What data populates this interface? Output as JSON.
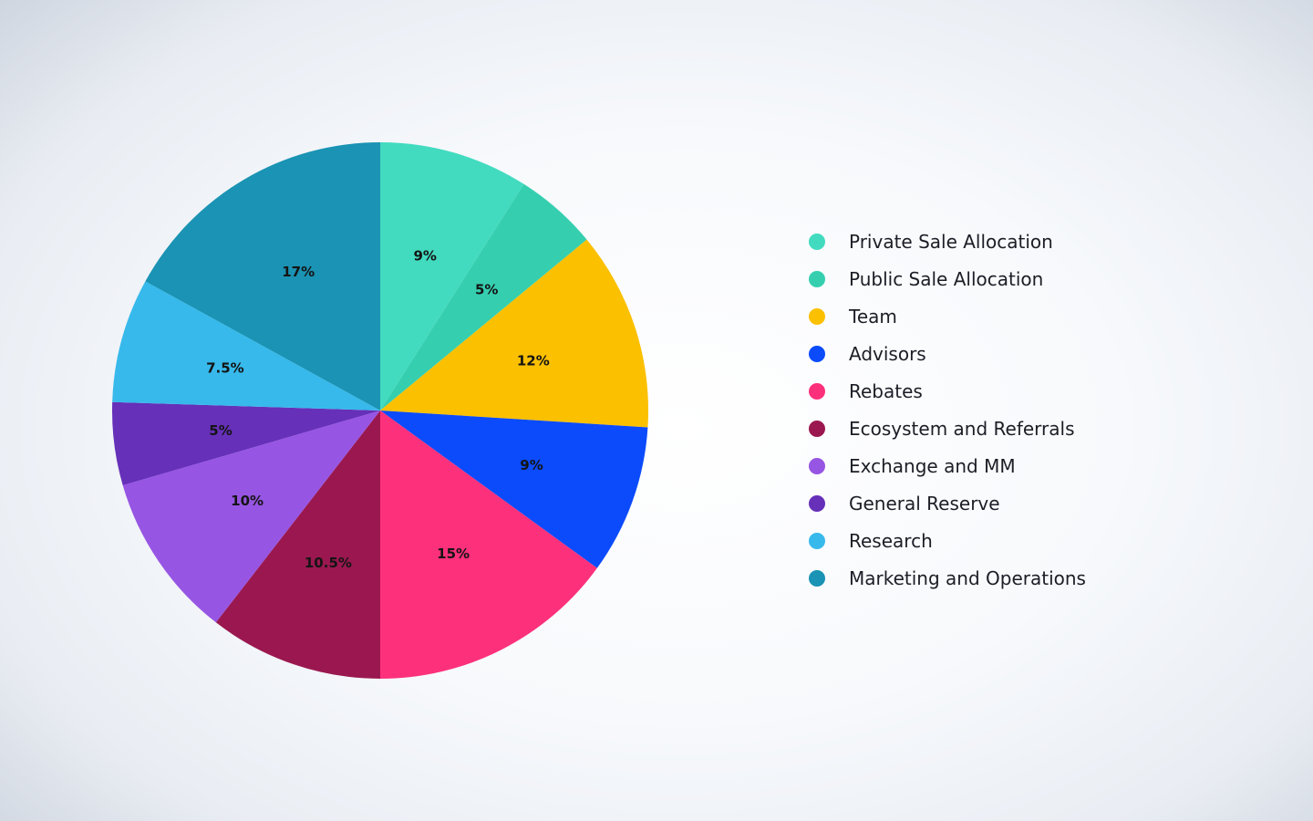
{
  "chart_data": {
    "type": "pie",
    "title": "",
    "start_angle_deg": 0,
    "direction": "clockwise",
    "legend_position": "right",
    "slices": [
      {
        "label": "Private Sale Allocation",
        "value": 9,
        "display": "9%",
        "color": "#42dbc0"
      },
      {
        "label": "Public Sale Allocation",
        "value": 5,
        "display": "5%",
        "color": "#35cfb0"
      },
      {
        "label": "Team",
        "value": 12,
        "display": "12%",
        "color": "#fbc000"
      },
      {
        "label": "Advisors",
        "value": 9,
        "display": "9%",
        "color": "#0b4bfb"
      },
      {
        "label": "Rebates",
        "value": 15,
        "display": "15%",
        "color": "#fd307b"
      },
      {
        "label": "Ecosystem and Referrals",
        "value": 10.5,
        "display": "10.5%",
        "color": "#9a184f"
      },
      {
        "label": "Exchange and MM",
        "value": 10,
        "display": "10%",
        "color": "#9755e3"
      },
      {
        "label": "General Reserve",
        "value": 5,
        "display": "5%",
        "color": "#6630b9"
      },
      {
        "label": "Research",
        "value": 7.5,
        "display": "7.5%",
        "color": "#37b9eb"
      },
      {
        "label": "Marketing and Operations",
        "value": 17,
        "display": "17%",
        "color": "#1a93b4"
      }
    ]
  }
}
